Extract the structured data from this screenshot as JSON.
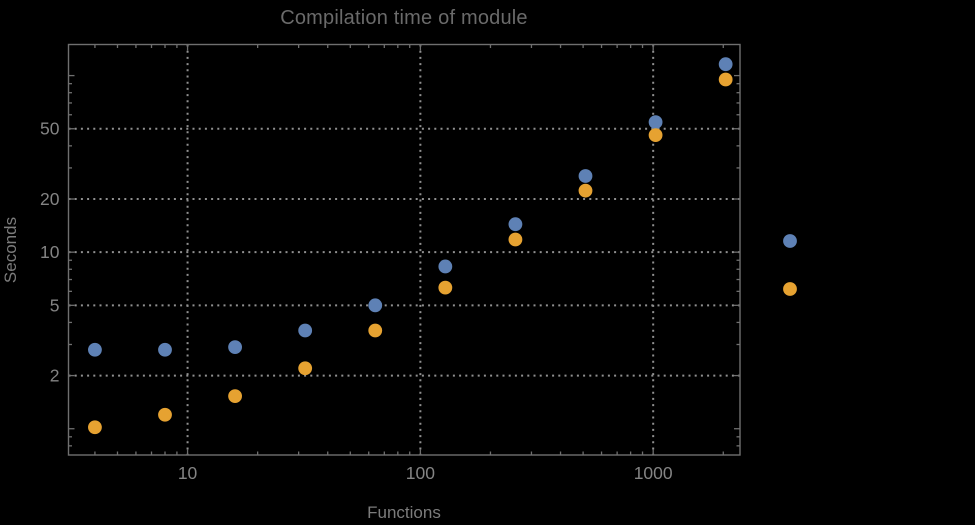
{
  "title": "Compilation time of module",
  "colors": {
    "background": "#000000",
    "title_text": "#6a6a6a",
    "axis_label_text": "#7c7c7c",
    "tick_label_text": "#848484",
    "frame": "#6f6f6f",
    "grid": "#909090",
    "series_blue": "#5e81b5",
    "series_orange": "#e6a231"
  },
  "chart_data": {
    "type": "scatter",
    "title": "Compilation time of module",
    "xlabel": "Functions",
    "ylabel": "Seconds",
    "x_scale": "log",
    "y_scale": "log",
    "xlim": [
      3.08,
      2360
    ],
    "ylim": [
      0.71,
      150
    ],
    "x_ticks": [
      10,
      100,
      1000
    ],
    "x_tick_labels": [
      "10",
      "100",
      "1000"
    ],
    "y_ticks": [
      2,
      5,
      10,
      20,
      50
    ],
    "y_tick_labels": [
      "2",
      "5",
      "10",
      "20",
      "50"
    ],
    "grid": "dotted gray lines at labeled major ticks, framed plot with inward minor ticks on all four edges",
    "x": [
      4,
      8,
      16,
      32,
      64,
      128,
      256,
      512,
      1024,
      2048
    ],
    "series": [
      {
        "name": "blue",
        "color": "#5e81b5",
        "values": [
          2.8,
          2.8,
          2.9,
          3.6,
          5.0,
          8.3,
          14.4,
          27,
          54.5,
          116
        ]
      },
      {
        "name": "orange",
        "color": "#e6a231",
        "values": [
          1.02,
          1.2,
          1.53,
          2.2,
          3.6,
          6.3,
          11.8,
          22.3,
          46,
          95
        ]
      }
    ],
    "legend": {
      "position": "outside-right",
      "items": [
        {
          "series": "blue",
          "color": "#5e81b5",
          "label": ""
        },
        {
          "series": "orange",
          "color": "#e6a231",
          "label": ""
        }
      ]
    }
  }
}
